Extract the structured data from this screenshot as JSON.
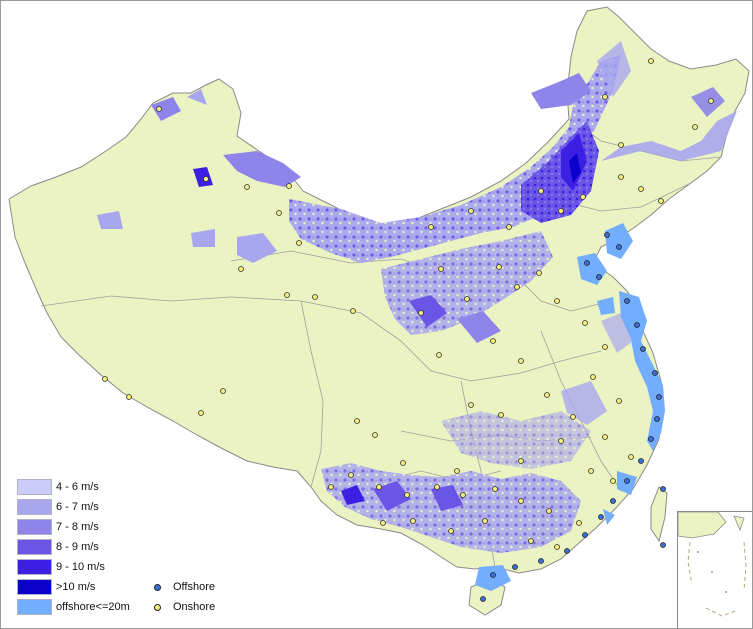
{
  "colors": {
    "land": "#eaf3c1",
    "border": "#8a8a8a",
    "ws_4_6": "#ccccf8",
    "ws_6_7": "#a9a6f0",
    "ws_7_8": "#8e84ea",
    "ws_8_9": "#6a55e6",
    "ws_9_10": "#3b1fe3",
    "ws_10plus": "#0a00cc",
    "offshore_zone": "#72aefd",
    "offshore_point": "#3a6fd8",
    "onshore_point": "#f4ef7a"
  },
  "legend": {
    "wind_speed_classes": [
      {
        "label": "4 - 6 m/s",
        "color_key": "ws_4_6"
      },
      {
        "label": "6 - 7 m/s",
        "color_key": "ws_6_7"
      },
      {
        "label": "7 - 8 m/s",
        "color_key": "ws_7_8"
      },
      {
        "label": "8 - 9 m/s",
        "color_key": "ws_8_9"
      },
      {
        "label": "9 - 10 m/s",
        "color_key": "ws_9_10"
      },
      {
        "label": ">10 m/s",
        "color_key": "ws_10plus"
      },
      {
        "label": "offshore<=20m",
        "color_key": "offshore_zone"
      }
    ],
    "point_types": [
      {
        "label": "Offshore",
        "color_key": "offshore_point"
      },
      {
        "label": "Onshore",
        "color_key": "onshore_point"
      }
    ]
  }
}
